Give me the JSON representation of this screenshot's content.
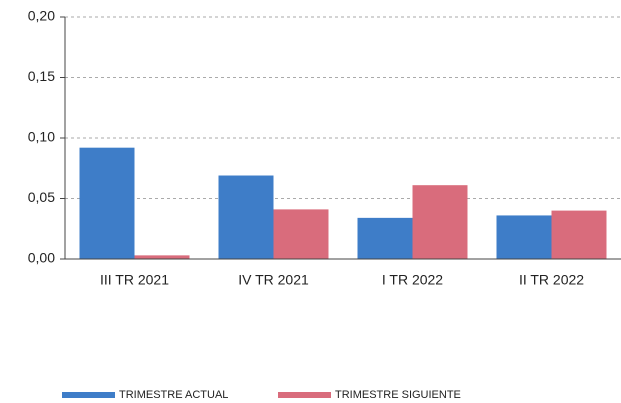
{
  "chart_data": {
    "type": "bar",
    "categories": [
      "III TR 2021",
      "IV TR 2021",
      "I TR 2022",
      "II TR 2022"
    ],
    "series": [
      {
        "name": "TRIMESTRE ACTUAL",
        "color": "#3e7dc8",
        "values": [
          0.092,
          0.069,
          0.034,
          0.036
        ]
      },
      {
        "name": "TRIMESTRE SIGUIENTE",
        "color": "#d96c7c",
        "values": [
          0.003,
          0.041,
          0.061,
          0.04
        ]
      }
    ],
    "ylim": [
      0,
      0.2
    ],
    "yticks": [
      {
        "value": 0,
        "label": "0,00"
      },
      {
        "value": 0.05,
        "label": "0,05"
      },
      {
        "value": 0.1,
        "label": "0,10"
      },
      {
        "value": 0.15,
        "label": "0,15"
      },
      {
        "value": 0.2,
        "label": "0,20"
      }
    ],
    "grid": true,
    "legend": "bottom"
  }
}
